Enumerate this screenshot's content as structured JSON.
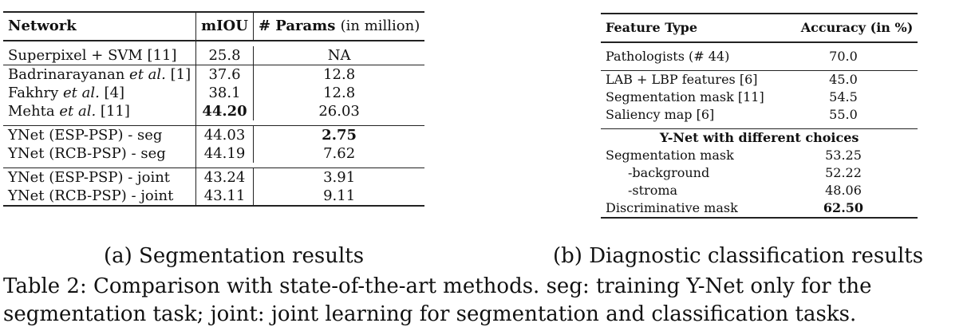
{
  "table_a": {
    "headers": {
      "network": "Network",
      "miou": "mIOU",
      "params_bold": "# Params",
      "params_rest": "(in million)"
    },
    "groups": [
      [
        {
          "name": "Superpixel + SVM [11]",
          "miou": "25.8",
          "params": "NA"
        }
      ],
      [
        {
          "name": "Badrinarayanan et al. [1]",
          "miou": "37.6",
          "params": "12.8"
        },
        {
          "name": "Fakhry et al. [4]",
          "miou": "38.1",
          "params": "12.8"
        },
        {
          "name": "Mehta et al. [11]",
          "miou": "44.20",
          "params": "26.03"
        }
      ],
      [
        {
          "name": "YNet (ESP-PSP) - seg",
          "miou": "44.03",
          "params": "2.75"
        },
        {
          "name": "YNet (RCB-PSP) - seg",
          "miou": "44.19",
          "params": "7.62"
        }
      ],
      [
        {
          "name": "YNet (ESP-PSP) - joint",
          "miou": "43.24",
          "params": "3.91"
        },
        {
          "name": "YNet (RCB-PSP) - joint",
          "miou": "43.11",
          "params": "9.11"
        }
      ]
    ],
    "caption": "(a) Segmentation results"
  },
  "table_b": {
    "headers": {
      "feature": "Feature Type",
      "accuracy": "Accuracy (in %)"
    },
    "rows_1": [
      {
        "name": "Pathologists (# 44)",
        "acc": "70.0"
      }
    ],
    "rows_2": [
      {
        "name": "LAB + LBP features [6]",
        "acc": "45.0"
      },
      {
        "name": "Segmentation mask [11]",
        "acc": "54.5"
      },
      {
        "name": "Saliency map [6]",
        "acc": "55.0"
      }
    ],
    "subheader": "Y-Net with different choices",
    "rows_3": [
      {
        "name": "Segmentation mask",
        "acc": "53.25"
      },
      {
        "name": "-background",
        "acc": "52.22"
      },
      {
        "name": "-stroma",
        "acc": "48.06"
      },
      {
        "name": "Discriminative mask",
        "acc": "62.50"
      }
    ],
    "caption": "(b) Diagnostic classification results"
  },
  "main_caption": {
    "line1": "Table 2: Comparison with state-of-the-art methods. seg: training Y-Net only for the",
    "line2": "segmentation task; joint: joint learning for segmentation and classification tasks."
  }
}
